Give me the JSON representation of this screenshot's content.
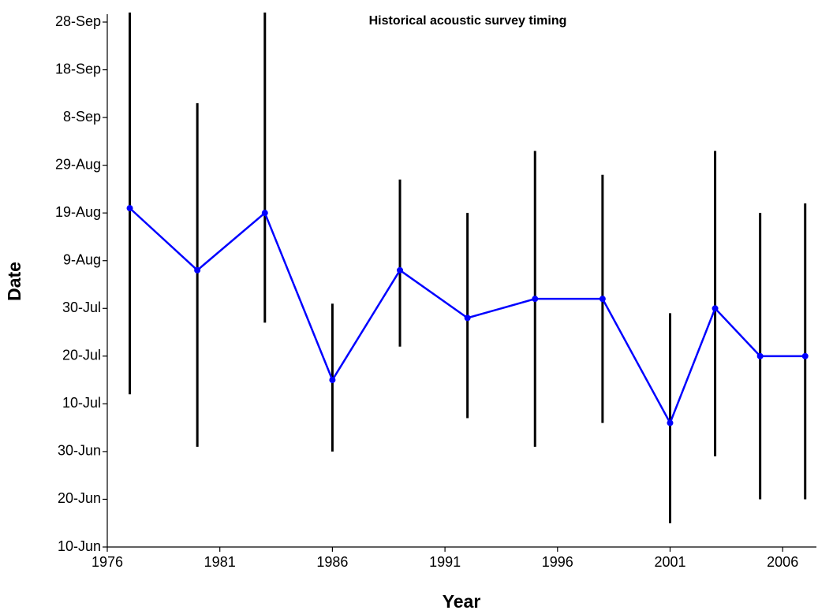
{
  "chart_data": {
    "type": "line",
    "title": "Historical acoustic survey timing",
    "x_label": "Year",
    "y_label": "Date",
    "x": [
      1977,
      1980,
      1983,
      1986,
      1989,
      1992,
      1995,
      1998,
      2001,
      2003,
      2005,
      2007
    ],
    "series": [
      {
        "color": "#0000ff",
        "error_color": "#000000",
        "values": [
          232,
          219,
          231,
          196,
          219,
          209,
          213,
          213,
          187,
          211,
          201,
          201
        ],
        "error_low": [
          193,
          182,
          208,
          181,
          203,
          188,
          182,
          187,
          166,
          180,
          171,
          171
        ],
        "error_high": [
          273,
          254,
          273,
          212,
          238,
          231,
          244,
          239,
          210,
          244,
          231,
          233
        ]
      }
    ],
    "xlim": [
      1976,
      2007.5
    ],
    "xticks": [
      1976,
      1981,
      1986,
      1991,
      1996,
      2001,
      2006
    ],
    "ylim": [
      161,
      271
    ],
    "yticks": [
      {
        "value": 161,
        "label": "10-Jun"
      },
      {
        "value": 171,
        "label": "20-Jun"
      },
      {
        "value": 181,
        "label": "30-Jun"
      },
      {
        "value": 191,
        "label": "10-Jul"
      },
      {
        "value": 201,
        "label": "20-Jul"
      },
      {
        "value": 211,
        "label": "30-Jul"
      },
      {
        "value": 221,
        "label": "9-Aug"
      },
      {
        "value": 231,
        "label": "19-Aug"
      },
      {
        "value": 241,
        "label": "29-Aug"
      },
      {
        "value": 251,
        "label": "8-Sep"
      },
      {
        "value": 261,
        "label": "18-Sep"
      },
      {
        "value": 271,
        "label": "28-Sep"
      }
    ],
    "grid": false
  }
}
